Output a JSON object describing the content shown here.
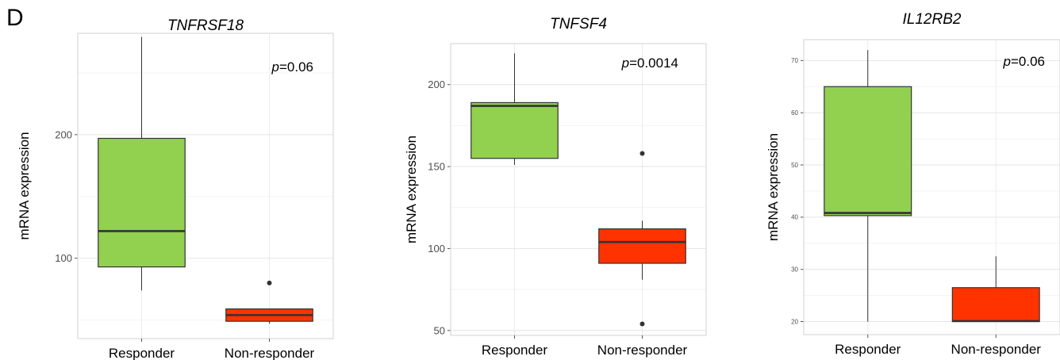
{
  "panel_label": "D",
  "chart_data": [
    {
      "type": "box",
      "title": "TNFRSF18",
      "ylabel": "mRNA expression",
      "xlabel": "",
      "annotation_prefix": "p",
      "annotation_value": "=0.06",
      "ylim": [
        35,
        282
      ],
      "yticks": [
        100,
        200
      ],
      "grid": true,
      "categories": [
        "Responder",
        "Non-responder"
      ],
      "colors": [
        "#92d050",
        "#ff3300"
      ],
      "boxes": [
        {
          "name": "Responder",
          "whisker_low": 74,
          "q1": 93,
          "median": 122,
          "q3": 197,
          "whisker_high": 279,
          "outliers": []
        },
        {
          "name": "Non-responder",
          "whisker_low": 47,
          "q1": 49,
          "median": 54,
          "q3": 59,
          "whisker_high": 59,
          "outliers": [
            80
          ]
        }
      ]
    },
    {
      "type": "box",
      "title": "TNFSF4",
      "ylabel": "mRNA expression",
      "xlabel": "",
      "annotation_prefix": "p",
      "annotation_value": "=0.0014",
      "ylim": [
        47,
        225
      ],
      "yticks": [
        50,
        100,
        150,
        200
      ],
      "grid": true,
      "categories": [
        "Responder",
        "Non-responder"
      ],
      "colors": [
        "#92d050",
        "#ff3300"
      ],
      "boxes": [
        {
          "name": "Responder",
          "whisker_low": 151,
          "q1": 155,
          "median": 187,
          "q3": 189,
          "whisker_high": 219,
          "outliers": []
        },
        {
          "name": "Non-responder",
          "whisker_low": 81,
          "q1": 91,
          "median": 104,
          "q3": 112,
          "whisker_high": 117,
          "outliers": [
            158,
            54
          ]
        }
      ]
    },
    {
      "type": "box",
      "title": "IL12RB2",
      "ylabel": "mRNA expression",
      "xlabel": "",
      "annotation_prefix": "p",
      "annotation_value": "=0.06",
      "ylim": [
        17.5,
        74
      ],
      "yticks": [
        20,
        30,
        40,
        50,
        60,
        70
      ],
      "grid": true,
      "categories": [
        "Responder",
        "Non-responder"
      ],
      "colors": [
        "#92d050",
        "#ff3300"
      ],
      "boxes": [
        {
          "name": "Responder",
          "whisker_low": 20,
          "q1": 40.3,
          "median": 40.8,
          "q3": 65,
          "whisker_high": 72,
          "outliers": []
        },
        {
          "name": "Non-responder",
          "whisker_low": 20,
          "q1": 20,
          "median": 20.1,
          "q3": 26.5,
          "whisker_high": 32.5,
          "outliers": []
        }
      ]
    }
  ]
}
